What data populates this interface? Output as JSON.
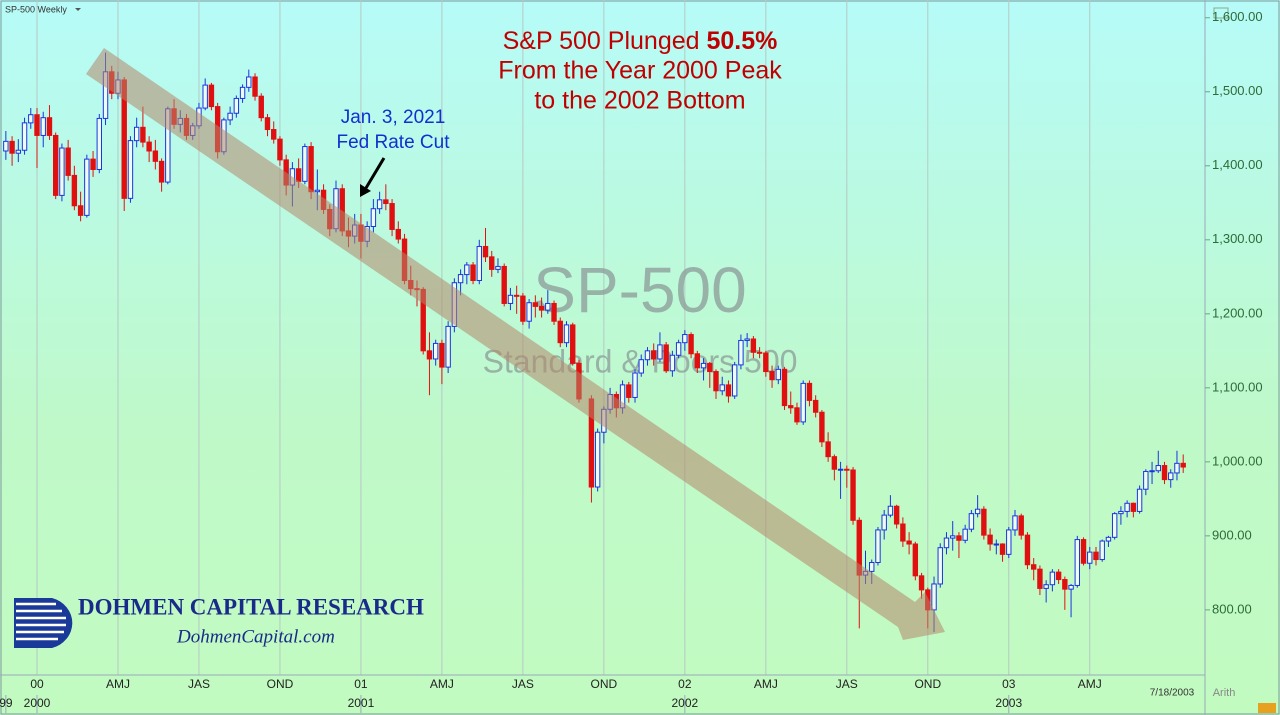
{
  "chart_data": {
    "type": "candlestick",
    "title": "SP-500 Weekly",
    "watermark": {
      "title": "SP-500",
      "subtitle": "Standard & Poors 500"
    },
    "headline": [
      "S&P 500 Plunged",
      "50.5%",
      "From the Year 2000 Peak",
      "to the 2002 Bottom"
    ],
    "callout": [
      "Jan. 3, 2021",
      "Fed Rate Cut"
    ],
    "date_label": "7/18/2003",
    "scale_label": "Arith",
    "up_color": "#1a35e0",
    "down_color": "#e01010",
    "grid": "x",
    "xlim": [
      -5.94,
      187.5
    ],
    "ylim": [
      712,
      1624
    ],
    "yticks": [
      {
        "value": 1600,
        "label": "1,600.00"
      },
      {
        "value": 1500,
        "label": "1,500.00"
      },
      {
        "value": 1400,
        "label": "1,400.00"
      },
      {
        "value": 1300,
        "label": "1,300.00"
      },
      {
        "value": 1200,
        "label": "1,200.00"
      },
      {
        "value": 1100,
        "label": "1,100.00"
      },
      {
        "value": 1000,
        "label": "1,000.00"
      },
      {
        "value": 900,
        "label": "900.00"
      },
      {
        "value": 800,
        "label": "800.00"
      }
    ],
    "xticks": [
      {
        "value": 0,
        "label": "00"
      },
      {
        "value": 13,
        "label": "AMJ"
      },
      {
        "value": 26,
        "label": "JAS"
      },
      {
        "value": 39,
        "label": "OND"
      },
      {
        "value": 52,
        "label": "01"
      },
      {
        "value": 65,
        "label": "AMJ"
      },
      {
        "value": 78,
        "label": "JAS"
      },
      {
        "value": 91,
        "label": "OND"
      },
      {
        "value": 104,
        "label": "02"
      },
      {
        "value": 117,
        "label": "AMJ"
      },
      {
        "value": 130,
        "label": "JAS"
      },
      {
        "value": 143,
        "label": "OND"
      },
      {
        "value": 156,
        "label": "03"
      },
      {
        "value": 169,
        "label": "AMJ"
      }
    ],
    "year_ticks": [
      {
        "value": -5,
        "label": "99"
      },
      {
        "value": 0,
        "label": "2000"
      },
      {
        "value": 52,
        "label": "2001"
      },
      {
        "value": 104,
        "label": "2002"
      },
      {
        "value": 156,
        "label": "2003"
      }
    ],
    "x": [
      -5,
      -4,
      -3,
      -2,
      -1,
      0,
      1,
      2,
      3,
      4,
      5,
      6,
      7,
      8,
      9,
      10,
      11,
      12,
      13,
      14,
      15,
      16,
      17,
      18,
      19,
      20,
      21,
      22,
      23,
      24,
      25,
      26,
      27,
      28,
      29,
      30,
      31,
      32,
      33,
      34,
      35,
      36,
      37,
      38,
      39,
      40,
      41,
      42,
      43,
      44,
      45,
      46,
      47,
      48,
      49,
      50,
      51,
      52,
      53,
      54,
      55,
      56,
      57,
      58,
      59,
      60,
      61,
      62,
      63,
      64,
      65,
      66,
      67,
      68,
      69,
      70,
      71,
      72,
      73,
      74,
      75,
      76,
      77,
      78,
      79,
      80,
      81,
      82,
      83,
      84,
      85,
      86,
      87,
      89,
      90,
      91,
      92,
      93,
      94,
      95,
      96,
      97,
      98,
      99,
      100,
      101,
      102,
      103,
      104,
      105,
      106,
      107,
      108,
      109,
      110,
      111,
      112,
      113,
      114,
      115,
      116,
      117,
      118,
      119,
      120,
      121,
      122,
      123,
      124,
      125,
      126,
      127,
      128,
      129,
      130,
      131,
      132,
      133,
      134,
      135,
      136,
      137,
      138,
      139,
      140,
      141,
      142,
      143,
      144,
      145,
      146,
      147,
      148,
      149,
      150,
      151,
      152,
      153,
      154,
      155,
      156,
      157,
      158,
      159,
      160,
      161,
      162,
      163,
      164,
      165,
      166,
      167,
      168,
      169,
      170,
      171,
      172,
      173,
      174,
      175,
      176,
      177,
      178,
      179,
      180,
      181,
      182,
      183,
      184
    ],
    "open": [
      1420,
      1433,
      1417,
      1421,
      1458,
      1469,
      1441,
      1465,
      1441,
      1360,
      1424,
      1387,
      1346,
      1333,
      1409,
      1395,
      1464,
      1527,
      1498,
      1516,
      1356,
      1434,
      1452,
      1432,
      1420,
      1406,
      1378,
      1477,
      1456,
      1464,
      1441,
      1454,
      1478,
      1509,
      1480,
      1419,
      1462,
      1471,
      1491,
      1506,
      1520,
      1494,
      1465,
      1449,
      1436,
      1408,
      1374,
      1396,
      1379,
      1426,
      1365,
      1367,
      1341,
      1315,
      1369,
      1312,
      1305,
      1320,
      1298,
      1318,
      1342,
      1354,
      1349,
      1314,
      1301,
      1245,
      1234,
      1233,
      1150,
      1139,
      1160,
      1128,
      1183,
      1242,
      1253,
      1266,
      1245,
      1291,
      1277,
      1260,
      1264,
      1214,
      1225,
      1224,
      1190,
      1215,
      1210,
      1205,
      1214,
      1190,
      1161,
      1185,
      1133,
      1085,
      966,
      1040,
      1071,
      1091,
      1073,
      1104,
      1087,
      1120,
      1138,
      1150,
      1139,
      1158,
      1123,
      1144,
      1161,
      1172,
      1146,
      1127,
      1133,
      1122,
      1096,
      1104,
      1089,
      1131,
      1164,
      1166,
      1148,
      1147,
      1122,
      1111,
      1125,
      1076,
      1073,
      1054,
      1106,
      1083,
      1067,
      1027,
      1007,
      990,
      990,
      989,
      921,
      847,
      852,
      864,
      908,
      928,
      940,
      916,
      893,
      889,
      846,
      827,
      800,
      835,
      884,
      897,
      900,
      894,
      909,
      930,
      936,
      901,
      889,
      889,
      875,
      908,
      927,
      901,
      861,
      855,
      829,
      834,
      851,
      841,
      828,
      833,
      895,
      863,
      878,
      868,
      893,
      898,
      930,
      933,
      944,
      933,
      963,
      987,
      988,
      995,
      976,
      985,
      998
    ],
    "high": [
      1447,
      1440,
      1436,
      1465,
      1478,
      1478,
      1473,
      1482,
      1445,
      1430,
      1435,
      1400,
      1365,
      1415,
      1420,
      1470,
      1553,
      1535,
      1527,
      1520,
      1440,
      1465,
      1480,
      1440,
      1435,
      1410,
      1480,
      1490,
      1475,
      1470,
      1458,
      1485,
      1518,
      1512,
      1485,
      1465,
      1480,
      1495,
      1510,
      1530,
      1525,
      1498,
      1470,
      1460,
      1440,
      1415,
      1405,
      1410,
      1430,
      1432,
      1395,
      1375,
      1348,
      1380,
      1375,
      1330,
      1335,
      1335,
      1325,
      1355,
      1365,
      1375,
      1355,
      1325,
      1308,
      1265,
      1245,
      1236,
      1175,
      1165,
      1165,
      1190,
      1248,
      1260,
      1270,
      1270,
      1300,
      1316,
      1285,
      1275,
      1268,
      1235,
      1238,
      1228,
      1220,
      1225,
      1222,
      1232,
      1218,
      1195,
      1190,
      1188,
      1138,
      1090,
      1045,
      1075,
      1100,
      1095,
      1110,
      1108,
      1125,
      1145,
      1155,
      1160,
      1175,
      1162,
      1150,
      1165,
      1178,
      1175,
      1150,
      1140,
      1135,
      1125,
      1115,
      1110,
      1135,
      1172,
      1174,
      1170,
      1155,
      1150,
      1130,
      1130,
      1128,
      1095,
      1080,
      1110,
      1110,
      1090,
      1070,
      1040,
      1010,
      1000,
      995,
      993,
      925,
      880,
      868,
      912,
      935,
      955,
      942,
      925,
      905,
      892,
      850,
      830,
      845,
      890,
      905,
      920,
      905,
      915,
      935,
      955,
      940,
      910,
      895,
      890,
      912,
      935,
      930,
      905,
      870,
      860,
      840,
      855,
      855,
      845,
      835,
      900,
      898,
      885,
      885,
      895,
      900,
      932,
      940,
      948,
      945,
      968,
      990,
      1000,
      1015,
      1000,
      990,
      1015,
      1010
    ],
    "low": [
      1408,
      1400,
      1405,
      1415,
      1450,
      1397,
      1425,
      1435,
      1355,
      1352,
      1380,
      1340,
      1325,
      1330,
      1385,
      1390,
      1455,
      1490,
      1490,
      1339,
      1350,
      1425,
      1425,
      1405,
      1395,
      1365,
      1375,
      1450,
      1445,
      1435,
      1435,
      1450,
      1475,
      1475,
      1410,
      1415,
      1455,
      1465,
      1485,
      1500,
      1488,
      1460,
      1440,
      1430,
      1400,
      1360,
      1345,
      1370,
      1375,
      1355,
      1340,
      1335,
      1305,
      1310,
      1305,
      1290,
      1295,
      1275,
      1290,
      1310,
      1335,
      1340,
      1305,
      1295,
      1240,
      1225,
      1210,
      1145,
      1090,
      1130,
      1105,
      1120,
      1175,
      1225,
      1240,
      1240,
      1240,
      1270,
      1250,
      1255,
      1210,
      1205,
      1200,
      1185,
      1180,
      1195,
      1195,
      1200,
      1185,
      1155,
      1155,
      1130,
      1080,
      945,
      960,
      1025,
      1065,
      1060,
      1065,
      1080,
      1080,
      1115,
      1130,
      1130,
      1135,
      1120,
      1115,
      1140,
      1150,
      1140,
      1120,
      1110,
      1100,
      1085,
      1090,
      1080,
      1085,
      1125,
      1155,
      1140,
      1140,
      1115,
      1100,
      1105,
      1070,
      1065,
      1050,
      1050,
      1075,
      1060,
      1020,
      1000,
      975,
      950,
      965,
      915,
      775,
      835,
      835,
      860,
      895,
      925,
      910,
      885,
      875,
      840,
      815,
      775,
      770,
      830,
      875,
      880,
      870,
      890,
      905,
      925,
      895,
      880,
      875,
      865,
      870,
      900,
      895,
      855,
      840,
      820,
      810,
      825,
      835,
      800,
      790,
      830,
      860,
      855,
      860,
      865,
      885,
      895,
      915,
      925,
      925,
      930,
      955,
      970,
      985,
      970,
      965,
      975,
      985
    ],
    "close": [
      1433,
      1417,
      1421,
      1458,
      1469,
      1441,
      1465,
      1441,
      1360,
      1424,
      1387,
      1346,
      1333,
      1409,
      1395,
      1464,
      1527,
      1498,
      1516,
      1356,
      1434,
      1452,
      1432,
      1420,
      1406,
      1378,
      1477,
      1456,
      1464,
      1441,
      1454,
      1478,
      1509,
      1480,
      1419,
      1462,
      1471,
      1491,
      1506,
      1520,
      1494,
      1465,
      1449,
      1436,
      1408,
      1374,
      1396,
      1379,
      1426,
      1365,
      1367,
      1341,
      1315,
      1369,
      1312,
      1305,
      1320,
      1298,
      1318,
      1342,
      1354,
      1349,
      1314,
      1301,
      1245,
      1234,
      1233,
      1150,
      1139,
      1160,
      1128,
      1183,
      1242,
      1253,
      1266,
      1245,
      1291,
      1277,
      1260,
      1264,
      1214,
      1225,
      1224,
      1190,
      1215,
      1210,
      1205,
      1214,
      1190,
      1161,
      1185,
      1133,
      1085,
      966,
      1040,
      1071,
      1091,
      1073,
      1104,
      1087,
      1120,
      1138,
      1150,
      1139,
      1158,
      1123,
      1144,
      1161,
      1172,
      1146,
      1127,
      1133,
      1122,
      1096,
      1104,
      1089,
      1131,
      1164,
      1166,
      1148,
      1147,
      1122,
      1111,
      1125,
      1076,
      1073,
      1054,
      1106,
      1083,
      1067,
      1027,
      1007,
      990,
      990,
      989,
      921,
      847,
      852,
      864,
      908,
      928,
      940,
      916,
      893,
      889,
      846,
      827,
      800,
      835,
      884,
      897,
      900,
      894,
      909,
      930,
      936,
      901,
      889,
      889,
      875,
      908,
      927,
      901,
      861,
      855,
      829,
      834,
      851,
      841,
      828,
      833,
      895,
      863,
      878,
      868,
      893,
      898,
      930,
      933,
      944,
      933,
      963,
      987,
      988,
      995,
      976,
      985,
      998,
      993
    ]
  },
  "branding": {
    "name": "DOHMEN CAPITAL RESEARCH",
    "url": "DohmenCapital.com"
  }
}
